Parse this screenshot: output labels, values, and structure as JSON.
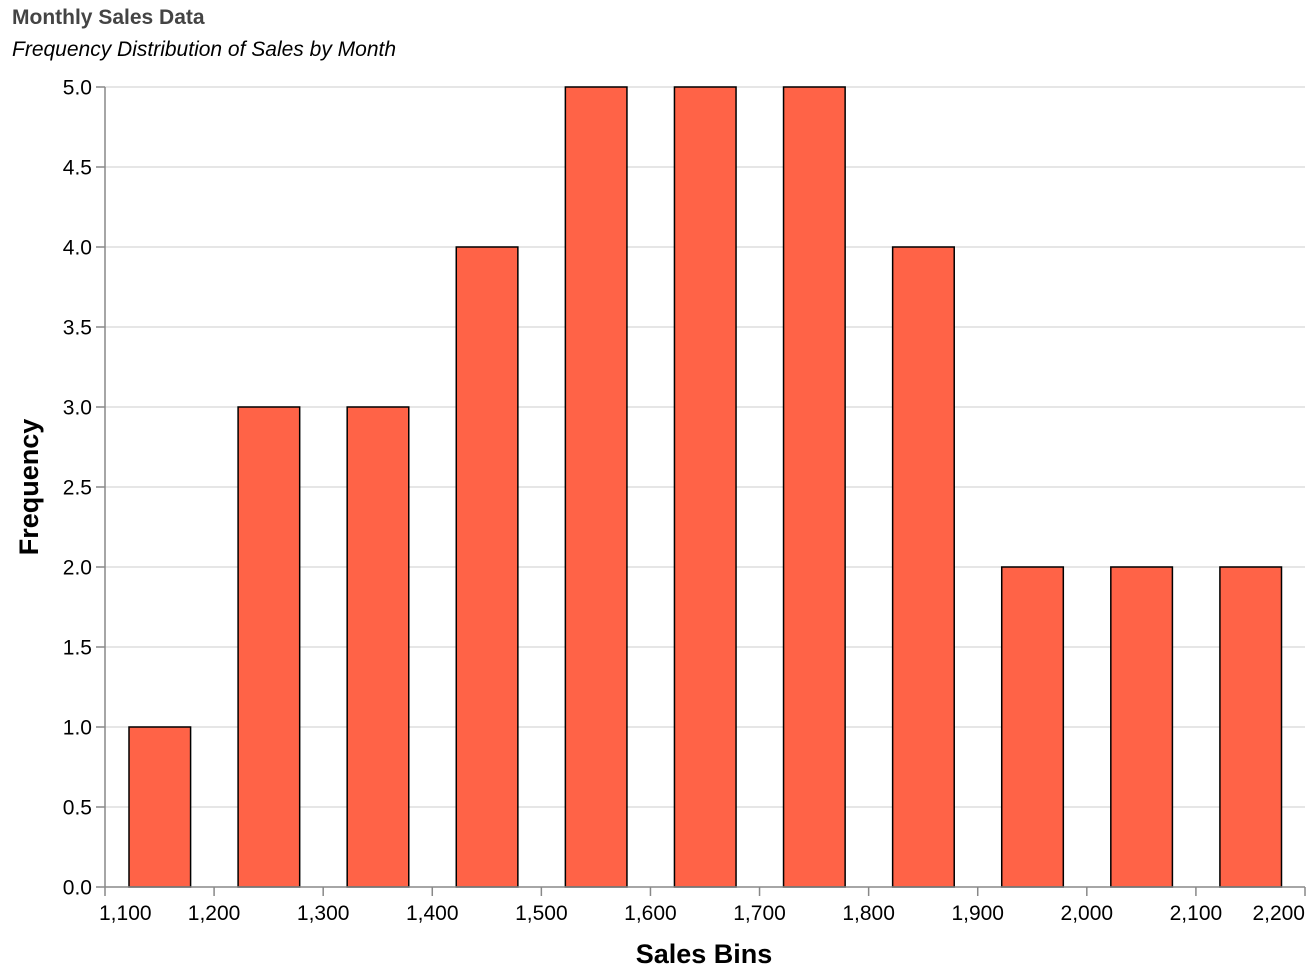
{
  "chart_data": {
    "type": "bar",
    "title": "Monthly Sales Data",
    "subtitle": "Frequency Distribution of Sales by Month",
    "xlabel": "Sales Bins",
    "ylabel": "Frequency",
    "bar_color": "#ff6347",
    "bar_stroke": "#000000",
    "grid": true,
    "xlim": [
      1100,
      2200
    ],
    "ylim": [
      0,
      5
    ],
    "x_ticks": [
      1100,
      1200,
      1300,
      1400,
      1500,
      1600,
      1700,
      1800,
      1900,
      2000,
      2100,
      2200
    ],
    "x_tick_labels": [
      "1,100",
      "1,200",
      "1,300",
      "1,400",
      "1,500",
      "1,600",
      "1,700",
      "1,800",
      "1,900",
      "2,000",
      "2,100",
      "2,200"
    ],
    "y_ticks": [
      0,
      0.5,
      1,
      1.5,
      2,
      2.5,
      3,
      3.5,
      4,
      4.5,
      5
    ],
    "y_tick_labels": [
      "0.0",
      "0.5",
      "1.0",
      "1.5",
      "2.0",
      "2.5",
      "3.0",
      "3.5",
      "4.0",
      "4.5",
      "5.0"
    ],
    "bins": [
      {
        "bin_start": 1100,
        "bin_end": 1200,
        "count": 1
      },
      {
        "bin_start": 1200,
        "bin_end": 1300,
        "count": 3
      },
      {
        "bin_start": 1300,
        "bin_end": 1400,
        "count": 3
      },
      {
        "bin_start": 1400,
        "bin_end": 1500,
        "count": 4
      },
      {
        "bin_start": 1500,
        "bin_end": 1600,
        "count": 5
      },
      {
        "bin_start": 1600,
        "bin_end": 1700,
        "count": 5
      },
      {
        "bin_start": 1700,
        "bin_end": 1800,
        "count": 5
      },
      {
        "bin_start": 1800,
        "bin_end": 1900,
        "count": 4
      },
      {
        "bin_start": 1900,
        "bin_end": 2000,
        "count": 2
      },
      {
        "bin_start": 2000,
        "bin_end": 2100,
        "count": 2
      },
      {
        "bin_start": 2100,
        "bin_end": 2200,
        "count": 2
      }
    ]
  }
}
